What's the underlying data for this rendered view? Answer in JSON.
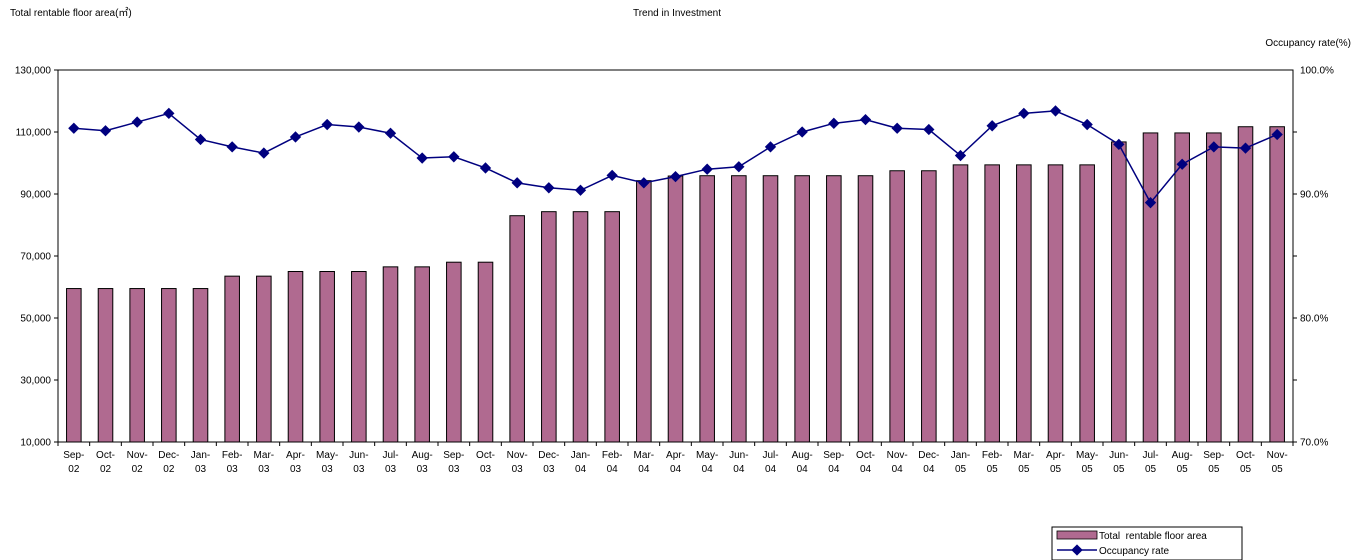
{
  "chart_data": {
    "type": "bar+line",
    "title": "Trend in Investment",
    "left_axis_label": "Total rentable floor area(㎡)",
    "right_axis_label": "Occupancy rate(%)",
    "left_ylim": [
      10000,
      130000
    ],
    "left_ticks": [
      "10,000",
      "30,000",
      "50,000",
      "70,000",
      "90,000",
      "110,000",
      "130,000"
    ],
    "right_ylim": [
      70.0,
      100.0
    ],
    "right_ticks": [
      "70.0%",
      "80.0%",
      "90.0%",
      "100.0%"
    ],
    "grid": false,
    "legend_position": "bottom-right",
    "categories": [
      [
        "Sep-",
        "02"
      ],
      [
        "Oct-",
        "02"
      ],
      [
        "Nov-",
        "02"
      ],
      [
        "Dec-",
        "02"
      ],
      [
        "Jan-",
        "03"
      ],
      [
        "Feb-",
        "03"
      ],
      [
        "Mar-",
        "03"
      ],
      [
        "Apr-",
        "03"
      ],
      [
        "May-",
        "03"
      ],
      [
        "Jun-",
        "03"
      ],
      [
        "Jul-",
        "03"
      ],
      [
        "Aug-",
        "03"
      ],
      [
        "Sep-",
        "03"
      ],
      [
        "Oct-",
        "03"
      ],
      [
        "Nov-",
        "03"
      ],
      [
        "Dec-",
        "03"
      ],
      [
        "Jan-",
        "04"
      ],
      [
        "Feb-",
        "04"
      ],
      [
        "Mar-",
        "04"
      ],
      [
        "Apr-",
        "04"
      ],
      [
        "May-",
        "04"
      ],
      [
        "Jun-",
        "04"
      ],
      [
        "Jul-",
        "04"
      ],
      [
        "Aug-",
        "04"
      ],
      [
        "Sep-",
        "04"
      ],
      [
        "Oct-",
        "04"
      ],
      [
        "Nov-",
        "04"
      ],
      [
        "Dec-",
        "04"
      ],
      [
        "Jan-",
        "05"
      ],
      [
        "Feb-",
        "05"
      ],
      [
        "Mar-",
        "05"
      ],
      [
        "Apr-",
        "05"
      ],
      [
        "May-",
        "05"
      ],
      [
        "Jun-",
        "05"
      ],
      [
        "Jul-",
        "05"
      ],
      [
        "Aug-",
        "05"
      ],
      [
        "Sep-",
        "05"
      ],
      [
        "Oct-",
        "05"
      ],
      [
        "Nov-",
        "05"
      ]
    ],
    "series": [
      {
        "name": "Total  rentable floor area",
        "type": "bar",
        "axis": "left",
        "color": "#b06a90",
        "values": [
          59500,
          59500,
          59500,
          59500,
          59500,
          63500,
          63500,
          65000,
          65000,
          65000,
          66500,
          66500,
          68000,
          68000,
          83000,
          84300,
          84300,
          84300,
          94300,
          95800,
          95900,
          95900,
          95900,
          95900,
          95900,
          95900,
          97500,
          97500,
          99400,
          99400,
          99400,
          99400,
          99400,
          106800,
          109700,
          109700,
          109700,
          111700,
          111700
        ]
      },
      {
        "name": "Occupancy rate",
        "type": "line",
        "axis": "right",
        "color": "#00007f",
        "values": [
          95.3,
          95.1,
          95.8,
          96.5,
          94.4,
          93.8,
          93.3,
          94.6,
          95.6,
          95.4,
          94.9,
          92.9,
          93.0,
          92.1,
          90.9,
          90.5,
          90.3,
          91.5,
          90.9,
          91.4,
          92.0,
          92.2,
          93.8,
          95.0,
          95.7,
          96.0,
          95.3,
          95.2,
          93.1,
          95.5,
          96.5,
          96.7,
          95.6,
          94.0,
          89.3,
          92.4,
          93.8,
          93.7,
          94.8
        ]
      }
    ]
  }
}
